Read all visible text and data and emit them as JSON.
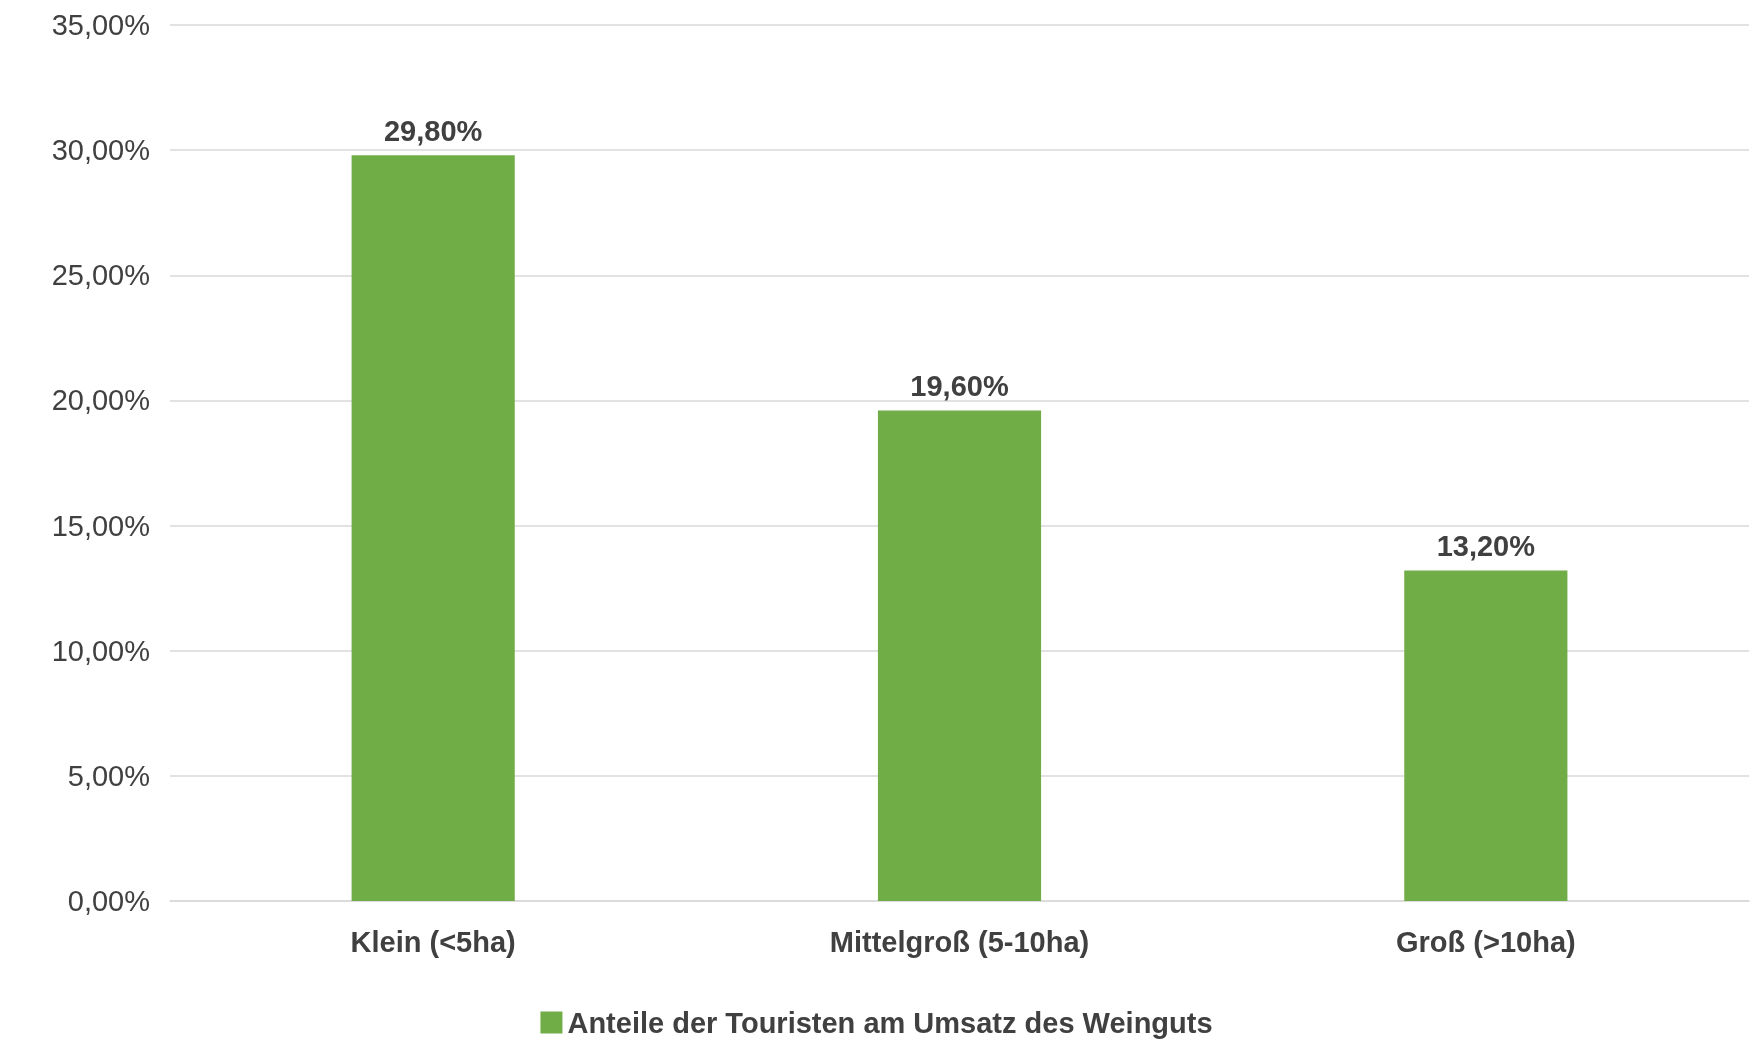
{
  "chart_data": {
    "type": "bar",
    "categories": [
      "Klein (<5ha)",
      "Mittelgroß (5-10ha)",
      "Groß (>10ha)"
    ],
    "series": [
      {
        "name": "Anteile der Touristen am Umsatz des Weinguts",
        "color": "#70ad47",
        "values": [
          29.8,
          19.6,
          13.2
        ],
        "value_labels": [
          "29,80%",
          "19,60%",
          "13,20%"
        ]
      }
    ],
    "ylim": [
      0,
      35
    ],
    "yticks": [
      {
        "value": 0,
        "label": "0,00%"
      },
      {
        "value": 5,
        "label": "5,00%"
      },
      {
        "value": 10,
        "label": "10,00%"
      },
      {
        "value": 15,
        "label": "15,00%"
      },
      {
        "value": 20,
        "label": "20,00%"
      },
      {
        "value": 25,
        "label": "25,00%"
      },
      {
        "value": 30,
        "label": "30,00%"
      },
      {
        "value": 35,
        "label": "35,00%"
      }
    ],
    "grid": "y",
    "legend": "bottom"
  }
}
